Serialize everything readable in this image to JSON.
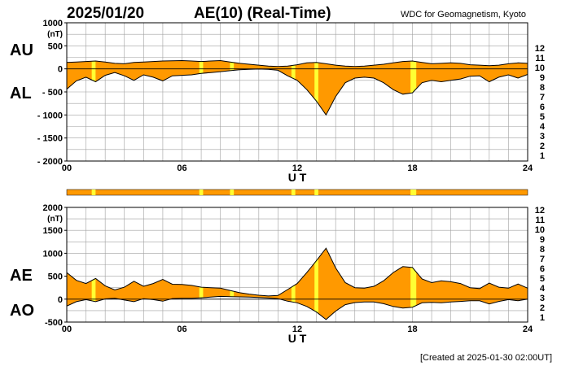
{
  "header": {
    "date": "2025/01/20",
    "title": "AE(10) (Real-Time)",
    "source": "WDC for Geomagnetism, Kyoto"
  },
  "footer": {
    "created": "[Created at 2025-01-30 02:00UT]"
  },
  "chart_data": [
    {
      "type": "area",
      "panel": "AU/AL",
      "ylim": [
        -2000,
        1000
      ],
      "ylabel_unit": "(nT)",
      "yticks": [
        1000,
        500,
        0,
        -500,
        -1000,
        -1500,
        -2000
      ],
      "ytick_labels": [
        "1000",
        "500",
        "0",
        "- 500",
        "- 1000",
        "- 1500",
        "- 2000"
      ],
      "xlim": [
        0,
        24
      ],
      "xticks": [
        "00",
        "06",
        "12",
        "18",
        "24"
      ],
      "xlabel": "U T",
      "left_labels": [
        "AU",
        "AL"
      ],
      "hours": [
        0,
        0.5,
        1,
        1.5,
        2,
        2.5,
        3,
        3.5,
        4,
        4.5,
        5,
        5.5,
        6,
        6.5,
        7,
        7.5,
        8,
        8.5,
        9,
        9.5,
        10,
        10.5,
        11,
        11.5,
        12,
        12.5,
        13,
        13.5,
        14,
        14.5,
        15,
        15.5,
        16,
        16.5,
        17,
        17.5,
        18,
        18.5,
        19,
        19.5,
        20,
        20.5,
        21,
        21.5,
        22,
        22.5,
        23,
        23.5,
        24
      ],
      "series": [
        {
          "name": "AU",
          "values": [
            140,
            150,
            160,
            170,
            150,
            120,
            110,
            140,
            150,
            160,
            170,
            175,
            180,
            170,
            160,
            170,
            180,
            150,
            120,
            100,
            80,
            60,
            50,
            60,
            90,
            130,
            140,
            110,
            80,
            60,
            50,
            60,
            80,
            100,
            130,
            160,
            170,
            140,
            110,
            120,
            130,
            120,
            90,
            80,
            70,
            80,
            110,
            130,
            120
          ]
        },
        {
          "name": "AL",
          "values": [
            -440,
            -260,
            -180,
            -280,
            -140,
            -80,
            -150,
            -250,
            -130,
            -180,
            -260,
            -150,
            -140,
            -130,
            -100,
            -80,
            -60,
            -40,
            -20,
            -10,
            -5,
            -10,
            -30,
            -150,
            -250,
            -450,
            -700,
            -1000,
            -600,
            -300,
            -200,
            -180,
            -200,
            -300,
            -450,
            -550,
            -520,
            -300,
            -250,
            -280,
            -250,
            -220,
            -160,
            -150,
            -280,
            -180,
            -130,
            -200,
            -120
          ]
        }
      ]
    },
    {
      "type": "area",
      "panel": "AE/AO",
      "ylim": [
        -500,
        2000
      ],
      "ylabel_unit": "(nT)",
      "yticks": [
        2000,
        1500,
        1000,
        500,
        0,
        -500
      ],
      "ytick_labels": [
        "2000",
        "1500",
        "1000",
        "500",
        "0",
        "-500"
      ],
      "xlim": [
        0,
        24
      ],
      "xticks": [
        "00",
        "06",
        "12",
        "18",
        "24"
      ],
      "xlabel": "U T",
      "left_labels": [
        "AE",
        "AO"
      ],
      "hours": [
        0,
        0.5,
        1,
        1.5,
        2,
        2.5,
        3,
        3.5,
        4,
        4.5,
        5,
        5.5,
        6,
        6.5,
        7,
        7.5,
        8,
        8.5,
        9,
        9.5,
        10,
        10.5,
        11,
        11.5,
        12,
        12.5,
        13,
        13.5,
        14,
        14.5,
        15,
        15.5,
        16,
        16.5,
        17,
        17.5,
        18,
        18.5,
        19,
        19.5,
        20,
        20.5,
        21,
        21.5,
        22,
        22.5,
        23,
        23.5,
        24
      ],
      "series": [
        {
          "name": "AE",
          "values": [
            580,
            410,
            340,
            450,
            290,
            200,
            260,
            390,
            280,
            340,
            430,
            325,
            320,
            300,
            260,
            250,
            240,
            190,
            140,
            110,
            85,
            70,
            80,
            210,
            340,
            580,
            840,
            1110,
            680,
            360,
            250,
            240,
            280,
            400,
            580,
            710,
            690,
            440,
            360,
            400,
            380,
            340,
            250,
            230,
            350,
            260,
            240,
            330,
            240
          ]
        },
        {
          "name": "AO",
          "values": [
            -150,
            -55,
            -10,
            -55,
            5,
            20,
            -20,
            -55,
            10,
            -10,
            -45,
            12,
            20,
            20,
            30,
            45,
            60,
            55,
            50,
            45,
            38,
            25,
            10,
            -45,
            -80,
            -160,
            -280,
            -445,
            -260,
            -120,
            -75,
            -60,
            -60,
            -100,
            -160,
            -195,
            -175,
            -80,
            -70,
            -80,
            -60,
            -50,
            -35,
            -35,
            -105,
            -50,
            -10,
            -35,
            0
          ]
        }
      ]
    }
  ],
  "quality_bar": {
    "highlight_hours": [
      [
        1.3,
        1.5
      ],
      [
        6.9,
        7.1
      ],
      [
        8.5,
        8.7
      ],
      [
        11.7,
        11.9
      ],
      [
        12.9,
        13.1
      ],
      [
        17.9,
        18.2
      ]
    ]
  },
  "station_legend": {
    "labels": [
      "12",
      "11",
      "10",
      "9",
      "8",
      "7",
      "6",
      "5",
      "4",
      "3",
      "2",
      "1"
    ],
    "colors": [
      "#ff1493",
      "#ff0000",
      "#ffa500",
      "#ffff00",
      "#7cfc00",
      "#00e5ff",
      "#1e6bff",
      "#0000cd",
      "#c000ff",
      "#000000",
      "#808080",
      "#c8c8c8"
    ]
  },
  "colors": {
    "fill": "#ff9900",
    "highlight": "#ffff33",
    "grid": "#a0a0a0"
  }
}
